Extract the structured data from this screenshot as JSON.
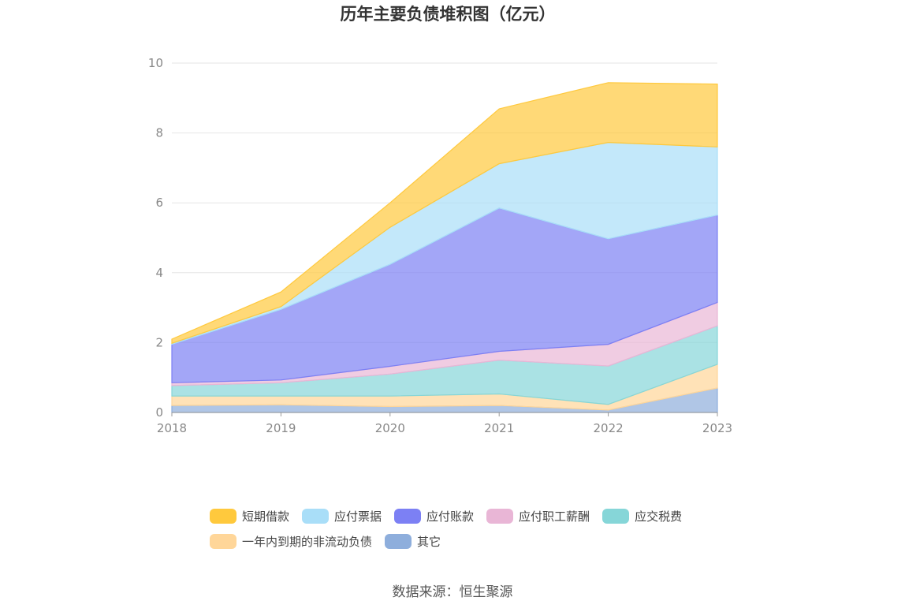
{
  "chart_data": {
    "type": "area",
    "stacked": true,
    "title": "历年主要负债堆积图（亿元）",
    "xlabel": "",
    "ylabel": "",
    "ylim": [
      0,
      10
    ],
    "yticks": [
      0,
      2,
      4,
      6,
      8,
      10
    ],
    "x": [
      "2018",
      "2019",
      "2020",
      "2021",
      "2022",
      "2023"
    ],
    "grid": true,
    "legend_position": "bottom",
    "series": [
      {
        "name": "其它",
        "color": "#8eaedc",
        "values": [
          0.2,
          0.22,
          0.17,
          0.2,
          0.07,
          0.7
        ]
      },
      {
        "name": "一年内到期的非流动负债",
        "color": "#ffd699",
        "values": [
          0.27,
          0.25,
          0.3,
          0.33,
          0.16,
          0.68
        ]
      },
      {
        "name": "应交税费",
        "color": "#86d6d8",
        "values": [
          0.3,
          0.38,
          0.63,
          0.97,
          1.1,
          1.1
        ]
      },
      {
        "name": "应付职工薪酬",
        "color": "#e9b6d6",
        "values": [
          0.08,
          0.08,
          0.22,
          0.25,
          0.62,
          0.67
        ]
      },
      {
        "name": "应付账款",
        "color": "#7c80f4",
        "values": [
          1.1,
          2.02,
          2.92,
          4.1,
          3.02,
          2.5
        ]
      },
      {
        "name": "应付票据",
        "color": "#a9def8",
        "values": [
          0.03,
          0.08,
          1.06,
          1.27,
          2.76,
          1.95
        ]
      },
      {
        "name": "短期借款",
        "color": "#ffc93d",
        "values": [
          0.12,
          0.42,
          0.7,
          1.57,
          1.71,
          1.8
        ]
      }
    ],
    "legend_order": [
      "短期借款",
      "应付票据",
      "应付账款",
      "应付职工薪酬",
      "应交税费",
      "一年内到期的非流动负债",
      "其它"
    ]
  },
  "source_text": "数据来源：恒生聚源"
}
